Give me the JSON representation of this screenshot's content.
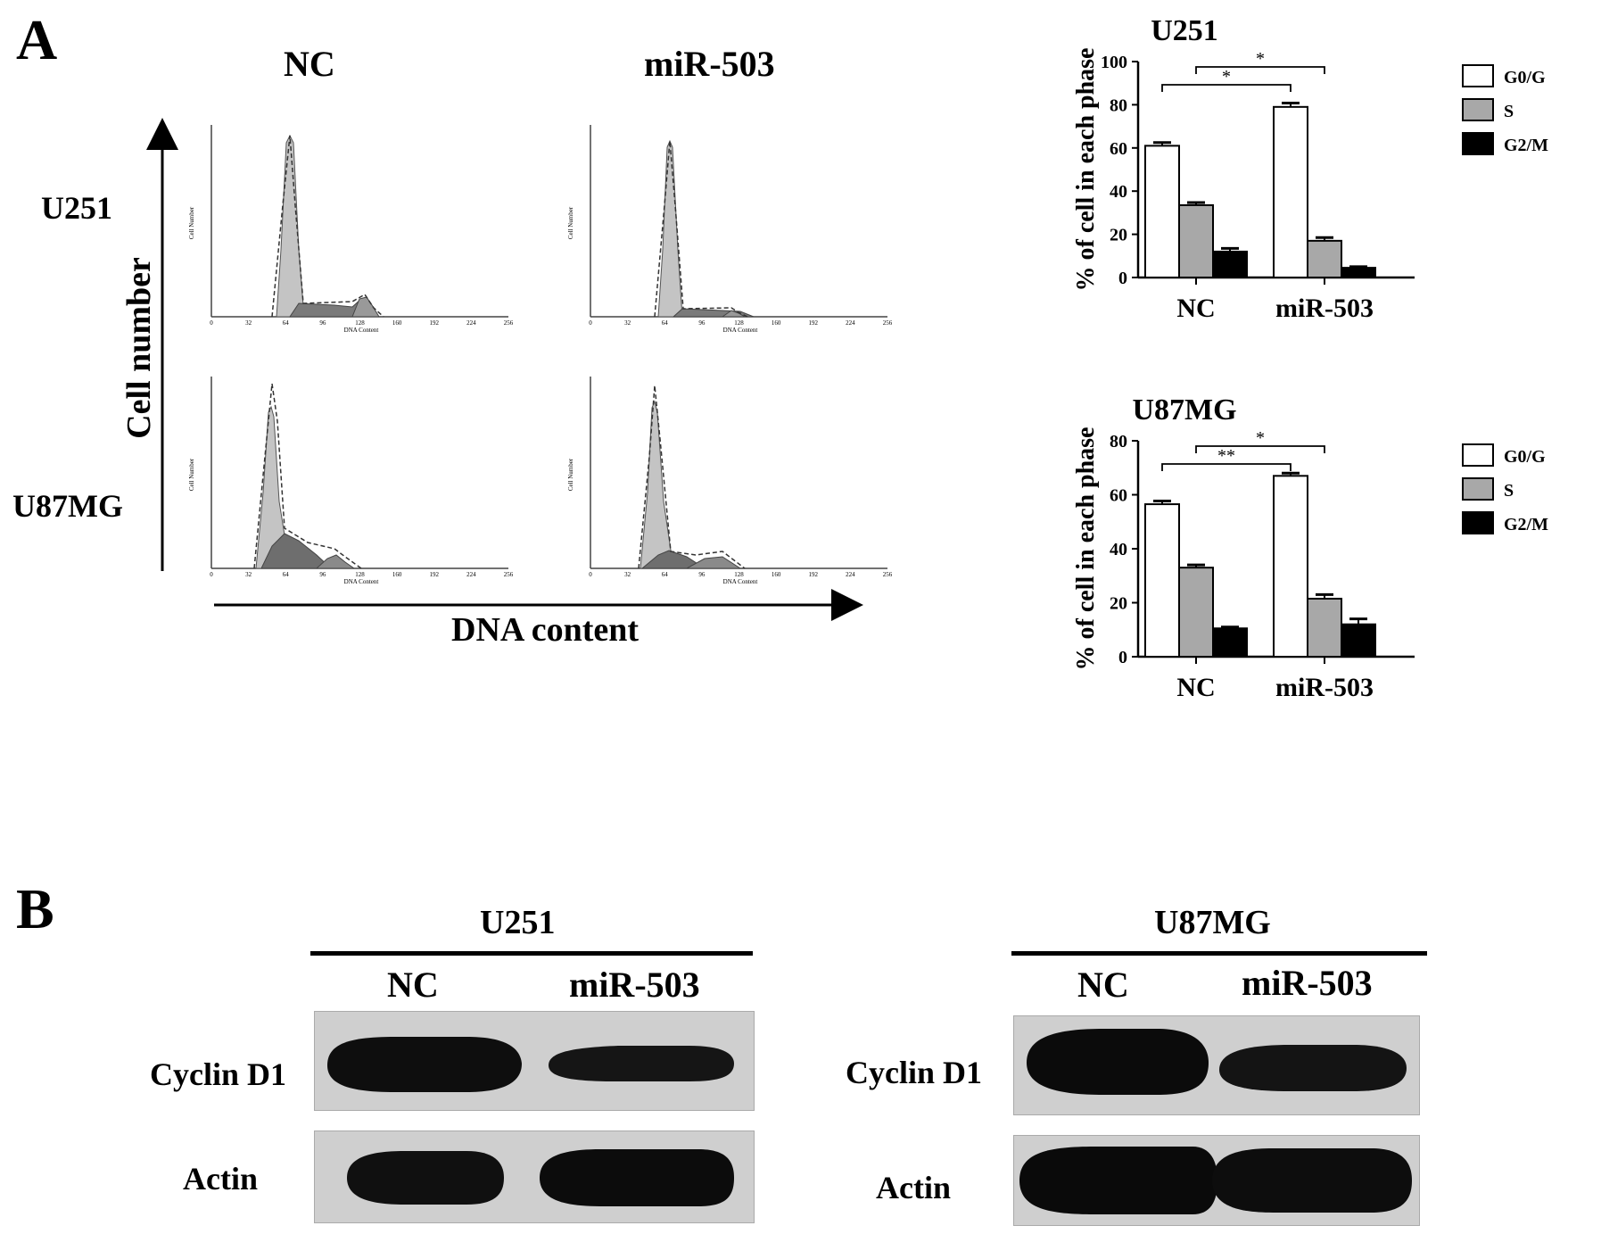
{
  "panel_a": {
    "letter": "A",
    "flow": {
      "col_labels": [
        "NC",
        "miR-503"
      ],
      "row_labels": [
        "U251",
        "U87MG"
      ],
      "y_axis_label": "Cell number",
      "x_axis_label": "DNA content",
      "mini_x_ticks": [
        "0",
        "32",
        "64",
        "96",
        "128",
        "160",
        "192",
        "224",
        "256"
      ],
      "mini_x_label": "DNA Content",
      "mini_y_label": "Cell Number"
    }
  },
  "chart_data": [
    {
      "type": "bar",
      "title": "U251",
      "ylabel": "% of cell in each phase",
      "xlabel": "",
      "categories": [
        "NC",
        "miR-503"
      ],
      "series": [
        {
          "name": "G0/G",
          "values": [
            61,
            79
          ],
          "errors": [
            1.5,
            1.8
          ]
        },
        {
          "name": "S",
          "values": [
            33.5,
            17
          ],
          "errors": [
            1.2,
            1.5
          ]
        },
        {
          "name": "G2/M",
          "values": [
            12,
            4.5
          ],
          "errors": [
            1.5,
            0.5
          ]
        }
      ],
      "ylim": [
        0,
        100
      ],
      "yticks": [
        "0",
        "20",
        "40",
        "60",
        "80",
        "100"
      ],
      "significance": [
        {
          "label": "*",
          "from": "NC G0/G",
          "to": "miR-503 G0/G"
        },
        {
          "label": "*",
          "from": "NC S",
          "to": "miR-503 S"
        }
      ],
      "legend_position": "right",
      "colors": {
        "G0/G": "#ffffff",
        "S": "#a8a8a8",
        "G2/M": "#000000"
      }
    },
    {
      "type": "bar",
      "title": "U87MG",
      "ylabel": "% of cell in each phase",
      "xlabel": "",
      "categories": [
        "NC",
        "miR-503"
      ],
      "series": [
        {
          "name": "G0/G",
          "values": [
            56.5,
            67
          ],
          "errors": [
            1.2,
            1.0
          ]
        },
        {
          "name": "S",
          "values": [
            33,
            21.5
          ],
          "errors": [
            1.0,
            1.5
          ]
        },
        {
          "name": "G2/M",
          "values": [
            10.5,
            12
          ],
          "errors": [
            0.5,
            2.0
          ]
        }
      ],
      "ylim": [
        0,
        80
      ],
      "yticks": [
        "0",
        "20",
        "40",
        "60",
        "80"
      ],
      "significance": [
        {
          "label": "**",
          "from": "NC G0/G",
          "to": "miR-503 G0/G"
        },
        {
          "label": "*",
          "from": "NC S",
          "to": "miR-503 S"
        }
      ],
      "legend_position": "right",
      "colors": {
        "G0/G": "#ffffff",
        "S": "#a8a8a8",
        "G2/M": "#000000"
      }
    }
  ],
  "panel_b": {
    "letter": "B",
    "blots": [
      {
        "cell_line": "U251",
        "lanes": [
          "NC",
          "miR-503"
        ],
        "rows": [
          "Cyclin D1",
          "Actin"
        ]
      },
      {
        "cell_line": "U87MG",
        "lanes": [
          "NC",
          "miR-503"
        ],
        "rows": [
          "Cyclin D1",
          "Actin"
        ]
      }
    ]
  }
}
